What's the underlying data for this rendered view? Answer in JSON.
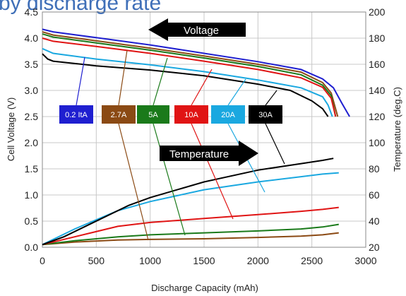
{
  "chart_data": {
    "type": "line",
    "title": "by discharge rate",
    "xlabel": "Discharge Capacity (mAh)",
    "ylabel_left": "Cell Voltage (V)",
    "ylabel_right": "Temperature (deg.C)",
    "xlim": [
      0,
      3000
    ],
    "ylim_left": [
      0,
      4.5
    ],
    "ylim_right": [
      20,
      200
    ],
    "x_ticks": [
      "0",
      "500",
      "1000",
      "1500",
      "2000",
      "2500",
      "3000"
    ],
    "y_left_ticks": [
      "0.0",
      "0.5",
      "1.0",
      "1.5",
      "2.0",
      "2.5",
      "3.0",
      "3.5",
      "4.0",
      "4.5"
    ],
    "y_right_ticks": [
      "20",
      "40",
      "60",
      "80",
      "100",
      "120",
      "140",
      "160",
      "180",
      "200"
    ],
    "grid": true,
    "annotations": [
      {
        "text": "Voltage",
        "direction": "left"
      },
      {
        "text": "Temperature",
        "direction": "right"
      }
    ],
    "series": [
      {
        "name": "0.2 ItA",
        "color": "#1f1fd0",
        "voltage": [
          [
            0,
            4.17
          ],
          [
            100,
            4.12
          ],
          [
            500,
            4.01
          ],
          [
            1000,
            3.87
          ],
          [
            1500,
            3.71
          ],
          [
            2000,
            3.55
          ],
          [
            2400,
            3.4
          ],
          [
            2600,
            3.22
          ],
          [
            2700,
            3.05
          ],
          [
            2780,
            2.75
          ],
          [
            2850,
            2.5
          ]
        ],
        "temperature": []
      },
      {
        "name": "2.7A",
        "color": "#8b4a14",
        "voltage": [
          [
            0,
            4.12
          ],
          [
            100,
            4.06
          ],
          [
            500,
            3.95
          ],
          [
            1000,
            3.81
          ],
          [
            1500,
            3.66
          ],
          [
            2000,
            3.5
          ],
          [
            2400,
            3.35
          ],
          [
            2600,
            3.15
          ],
          [
            2680,
            2.95
          ],
          [
            2740,
            2.5
          ]
        ],
        "temperature": [
          [
            0,
            22
          ],
          [
            300,
            24
          ],
          [
            700,
            25.5
          ],
          [
            1000,
            26
          ],
          [
            1500,
            26.5
          ],
          [
            2000,
            27.5
          ],
          [
            2400,
            28.5
          ],
          [
            2600,
            29.5
          ],
          [
            2750,
            31
          ]
        ]
      },
      {
        "name": "5A",
        "color": "#1a7a1a",
        "voltage": [
          [
            0,
            4.08
          ],
          [
            100,
            4.02
          ],
          [
            500,
            3.91
          ],
          [
            1000,
            3.77
          ],
          [
            1500,
            3.62
          ],
          [
            2000,
            3.46
          ],
          [
            2400,
            3.3
          ],
          [
            2600,
            3.1
          ],
          [
            2680,
            2.9
          ],
          [
            2720,
            2.5
          ]
        ],
        "temperature": [
          [
            0,
            22
          ],
          [
            300,
            25
          ],
          [
            700,
            28
          ],
          [
            1000,
            29.5
          ],
          [
            1500,
            31
          ],
          [
            2000,
            32.5
          ],
          [
            2400,
            34
          ],
          [
            2600,
            35.5
          ],
          [
            2750,
            37.5
          ]
        ]
      },
      {
        "name": "10A",
        "color": "#e01414",
        "voltage": [
          [
            0,
            4.0
          ],
          [
            100,
            3.94
          ],
          [
            500,
            3.84
          ],
          [
            1000,
            3.71
          ],
          [
            1500,
            3.56
          ],
          [
            2000,
            3.4
          ],
          [
            2400,
            3.24
          ],
          [
            2600,
            3.06
          ],
          [
            2680,
            2.85
          ],
          [
            2720,
            2.5
          ]
        ],
        "temperature": [
          [
            0,
            22
          ],
          [
            300,
            28
          ],
          [
            700,
            36
          ],
          [
            1000,
            39
          ],
          [
            1500,
            42
          ],
          [
            2000,
            45
          ],
          [
            2400,
            47.5
          ],
          [
            2600,
            49
          ],
          [
            2750,
            50.5
          ]
        ]
      },
      {
        "name": "20A",
        "color": "#1aa8e0",
        "voltage": [
          [
            0,
            3.8
          ],
          [
            100,
            3.71
          ],
          [
            500,
            3.6
          ],
          [
            1000,
            3.49
          ],
          [
            1500,
            3.36
          ],
          [
            2000,
            3.2
          ],
          [
            2400,
            3.05
          ],
          [
            2600,
            2.88
          ],
          [
            2650,
            2.72
          ],
          [
            2690,
            2.5
          ]
        ],
        "temperature": [
          [
            0,
            22
          ],
          [
            300,
            34
          ],
          [
            700,
            48
          ],
          [
            1000,
            55
          ],
          [
            1500,
            64
          ],
          [
            2000,
            70
          ],
          [
            2400,
            74
          ],
          [
            2600,
            76
          ],
          [
            2750,
            77
          ]
        ]
      },
      {
        "name": "30A",
        "color": "#000000",
        "voltage": [
          [
            0,
            3.7
          ],
          [
            50,
            3.6
          ],
          [
            100,
            3.56
          ],
          [
            500,
            3.47
          ],
          [
            1000,
            3.39
          ],
          [
            1500,
            3.28
          ],
          [
            2000,
            3.12
          ],
          [
            2300,
            3.0
          ],
          [
            2500,
            2.8
          ],
          [
            2600,
            2.65
          ],
          [
            2650,
            2.5
          ]
        ],
        "temperature": [
          [
            0,
            22
          ],
          [
            200,
            28
          ],
          [
            500,
            40
          ],
          [
            800,
            52
          ],
          [
            1000,
            58
          ],
          [
            1500,
            70
          ],
          [
            2000,
            79
          ],
          [
            2400,
            84
          ],
          [
            2600,
            86.5
          ],
          [
            2700,
            88
          ]
        ]
      }
    ]
  }
}
